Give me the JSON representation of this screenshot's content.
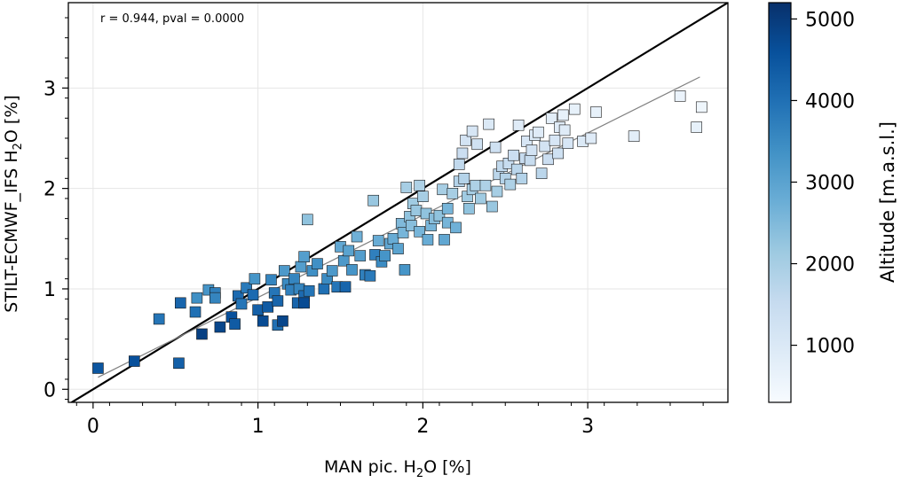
{
  "chart_data": {
    "type": "scatter",
    "annotation": "r = 0.944, pval = 0.0000",
    "xlabel": {
      "prefix": "MAN pic. H",
      "sub": "2",
      "suffix": "O [%]"
    },
    "ylabel": {
      "prefix": "STILT-ECMWF_IFS H",
      "sub": "2",
      "suffix": "O [%]"
    },
    "xlim": [
      -0.15,
      3.85
    ],
    "ylim": [
      -0.13,
      3.85
    ],
    "xticks": [
      0,
      1,
      2,
      3
    ],
    "yticks": [
      0,
      1,
      2,
      3
    ],
    "xtick_labels": [
      "0",
      "1",
      "2",
      "3"
    ],
    "ytick_labels": [
      "0",
      "1",
      "2",
      "3"
    ],
    "grid": true,
    "one_to_one_line": true,
    "fit_line": {
      "x": [
        0.03,
        3.68
      ],
      "y": [
        0.12,
        3.11
      ]
    },
    "colorbar": {
      "label": "Altitude [m.a.s.l.]",
      "range": [
        300,
        5200
      ],
      "ticks": [
        1000,
        2000,
        3000,
        4000,
        5000
      ],
      "tick_labels": [
        "1000",
        "2000",
        "3000",
        "4000",
        "5000"
      ],
      "colormap": "Blues",
      "colors": [
        "#f7fbff",
        "#deebf7",
        "#c6dbef",
        "#9ecae1",
        "#6baed6",
        "#4292c6",
        "#2171b5",
        "#08519c",
        "#08306b"
      ]
    },
    "points": [
      [
        0.03,
        0.21,
        4500
      ],
      [
        0.25,
        0.28,
        4600
      ],
      [
        0.52,
        0.26,
        4300
      ],
      [
        0.4,
        0.7,
        3900
      ],
      [
        0.53,
        0.86,
        4200
      ],
      [
        0.62,
        0.77,
        4000
      ],
      [
        0.63,
        0.91,
        3400
      ],
      [
        0.66,
        0.55,
        4900
      ],
      [
        0.7,
        0.99,
        3300
      ],
      [
        0.74,
        0.96,
        3700
      ],
      [
        0.74,
        0.91,
        3600
      ],
      [
        0.77,
        0.62,
        4800
      ],
      [
        0.84,
        0.72,
        4600
      ],
      [
        0.86,
        0.65,
        4400
      ],
      [
        0.88,
        0.93,
        4100
      ],
      [
        0.9,
        0.85,
        3900
      ],
      [
        0.93,
        1.01,
        3800
      ],
      [
        0.97,
        0.94,
        4100
      ],
      [
        0.98,
        1.1,
        3300
      ],
      [
        1.0,
        0.79,
        4300
      ],
      [
        1.03,
        0.68,
        4700
      ],
      [
        1.06,
        0.82,
        4400
      ],
      [
        1.08,
        1.09,
        3600
      ],
      [
        1.1,
        0.96,
        3900
      ],
      [
        1.12,
        0.88,
        4200
      ],
      [
        1.12,
        0.64,
        4000
      ],
      [
        1.15,
        0.68,
        4800
      ],
      [
        1.16,
        1.18,
        3200
      ],
      [
        1.18,
        1.05,
        3500
      ],
      [
        1.2,
        0.99,
        3700
      ],
      [
        1.22,
        1.1,
        3600
      ],
      [
        1.24,
        0.86,
        4200
      ],
      [
        1.25,
        1.0,
        3600
      ],
      [
        1.26,
        1.22,
        3100
      ],
      [
        1.28,
        1.32,
        3100
      ],
      [
        1.28,
        0.93,
        4100
      ],
      [
        1.28,
        0.86,
        4700
      ],
      [
        1.3,
        1.69,
        2300
      ],
      [
        1.31,
        0.98,
        3900
      ],
      [
        1.33,
        1.18,
        3400
      ],
      [
        1.36,
        1.25,
        3400
      ],
      [
        1.4,
        1.0,
        4000
      ],
      [
        1.42,
        1.1,
        3500
      ],
      [
        1.45,
        1.18,
        3200
      ],
      [
        1.48,
        1.02,
        3900
      ],
      [
        1.5,
        1.42,
        2900
      ],
      [
        1.52,
        1.28,
        3200
      ],
      [
        1.53,
        1.02,
        4200
      ],
      [
        1.55,
        1.38,
        3000
      ],
      [
        1.57,
        1.19,
        3300
      ],
      [
        1.6,
        1.52,
        2700
      ],
      [
        1.62,
        1.33,
        3100
      ],
      [
        1.65,
        1.14,
        3700
      ],
      [
        1.68,
        1.13,
        3800
      ],
      [
        1.7,
        1.88,
        2200
      ],
      [
        1.71,
        1.34,
        3700
      ],
      [
        1.73,
        1.48,
        2800
      ],
      [
        1.75,
        1.27,
        3500
      ],
      [
        1.77,
        1.33,
        3300
      ],
      [
        1.8,
        1.45,
        2900
      ],
      [
        1.82,
        1.5,
        2800
      ],
      [
        1.85,
        1.4,
        3000
      ],
      [
        1.87,
        1.65,
        2500
      ],
      [
        1.88,
        1.56,
        2600
      ],
      [
        1.89,
        1.19,
        3300
      ],
      [
        1.9,
        2.01,
        2000
      ],
      [
        1.92,
        1.72,
        2300
      ],
      [
        1.93,
        1.63,
        2400
      ],
      [
        1.94,
        1.85,
        2100
      ],
      [
        1.96,
        1.78,
        2200
      ],
      [
        1.98,
        1.57,
        2600
      ],
      [
        1.98,
        2.03,
        1900
      ],
      [
        2.0,
        1.92,
        2000
      ],
      [
        2.02,
        1.75,
        2300
      ],
      [
        2.03,
        1.49,
        2800
      ],
      [
        2.05,
        1.63,
        2600
      ],
      [
        2.07,
        1.7,
        2400
      ],
      [
        2.1,
        1.73,
        2300
      ],
      [
        2.12,
        1.99,
        2000
      ],
      [
        2.13,
        1.49,
        2900
      ],
      [
        2.15,
        1.66,
        2600
      ],
      [
        2.15,
        1.8,
        2600
      ],
      [
        2.18,
        1.95,
        2000
      ],
      [
        2.2,
        1.61,
        2700
      ],
      [
        2.22,
        2.07,
        1800
      ],
      [
        2.22,
        2.24,
        1600
      ],
      [
        2.24,
        2.35,
        1400
      ],
      [
        2.25,
        2.1,
        1800
      ],
      [
        2.26,
        2.48,
        1200
      ],
      [
        2.27,
        1.92,
        2100
      ],
      [
        2.28,
        1.8,
        2300
      ],
      [
        2.3,
        2.57,
        1100
      ],
      [
        2.3,
        1.99,
        2000
      ],
      [
        2.32,
        2.03,
        1900
      ],
      [
        2.33,
        2.44,
        1300
      ],
      [
        2.35,
        1.9,
        2100
      ],
      [
        2.38,
        2.03,
        1900
      ],
      [
        2.4,
        2.64,
        1000
      ],
      [
        2.42,
        1.82,
        2200
      ],
      [
        2.44,
        2.41,
        1300
      ],
      [
        2.45,
        1.97,
        2000
      ],
      [
        2.46,
        2.14,
        1700
      ],
      [
        2.48,
        2.22,
        1600
      ],
      [
        2.5,
        2.1,
        1800
      ],
      [
        2.52,
        2.25,
        1500
      ],
      [
        2.53,
        2.04,
        1900
      ],
      [
        2.55,
        2.33,
        1400
      ],
      [
        2.57,
        2.19,
        1700
      ],
      [
        2.58,
        2.63,
        900
      ],
      [
        2.6,
        2.1,
        1800
      ],
      [
        2.62,
        2.3,
        1500
      ],
      [
        2.63,
        2.47,
        1100
      ],
      [
        2.65,
        2.28,
        1500
      ],
      [
        2.66,
        2.38,
        1200
      ],
      [
        2.68,
        2.53,
        1000
      ],
      [
        2.7,
        2.56,
        900
      ],
      [
        2.72,
        2.15,
        1700
      ],
      [
        2.74,
        2.42,
        1200
      ],
      [
        2.76,
        2.29,
        1400
      ],
      [
        2.78,
        2.7,
        800
      ],
      [
        2.8,
        2.48,
        1100
      ],
      [
        2.82,
        2.35,
        1300
      ],
      [
        2.83,
        2.61,
        900
      ],
      [
        2.85,
        2.73,
        700
      ],
      [
        2.86,
        2.58,
        900
      ],
      [
        2.88,
        2.45,
        1100
      ],
      [
        2.92,
        2.79,
        700
      ],
      [
        2.97,
        2.47,
        1000
      ],
      [
        3.02,
        2.5,
        900
      ],
      [
        3.05,
        2.76,
        700
      ],
      [
        3.28,
        2.52,
        800
      ],
      [
        3.56,
        2.92,
        600
      ],
      [
        3.66,
        2.61,
        700
      ],
      [
        3.69,
        2.81,
        500
      ]
    ]
  }
}
